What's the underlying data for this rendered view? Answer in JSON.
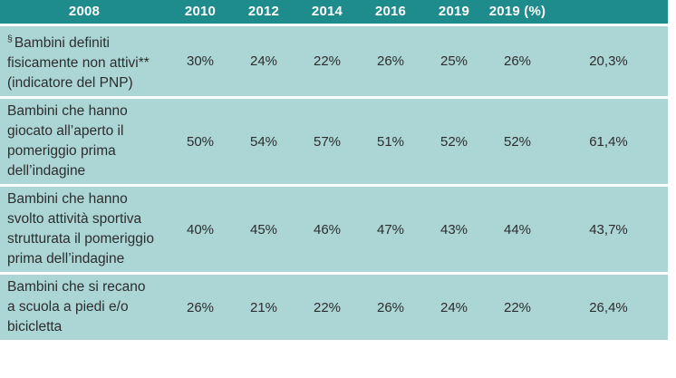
{
  "colors": {
    "header_bg": "#1E8C8D",
    "row_bg": "#ABD6D5",
    "header_text": "#FFFFFF",
    "body_text": "#2D2D2D",
    "background": "#FFFFFF"
  },
  "chart_data": {
    "type": "table",
    "columns": [
      "2008",
      "2010",
      "2012",
      "2014",
      "2016",
      "2019",
      "2019 (%)"
    ],
    "rows": [
      {
        "prefix_symbol": "§",
        "label": "Bambini definiti fisicamente non attivi** (indicatore del PNP)",
        "values": [
          "30%",
          "24%",
          "22%",
          "26%",
          "25%",
          "26%",
          "20,3%"
        ]
      },
      {
        "prefix_symbol": "",
        "label": "Bambini che hanno giocato all’aperto il pomeriggio prima dell’indagine",
        "values": [
          "50%",
          "54%",
          "57%",
          "51%",
          "52%",
          "52%",
          "61,4%"
        ]
      },
      {
        "prefix_symbol": "",
        "label": "Bambini che hanno svolto attività sportiva strutturata il pomeriggio prima dell’indagine",
        "values": [
          "40%",
          "45%",
          "46%",
          "47%",
          "43%",
          "44%",
          "43,7%"
        ]
      },
      {
        "prefix_symbol": "",
        "label": "Bambini che si recano a scuola a piedi e/o bicicletta",
        "values": [
          "26%",
          "21%",
          "22%",
          "26%",
          "24%",
          "22%",
          "26,4%"
        ]
      }
    ]
  }
}
